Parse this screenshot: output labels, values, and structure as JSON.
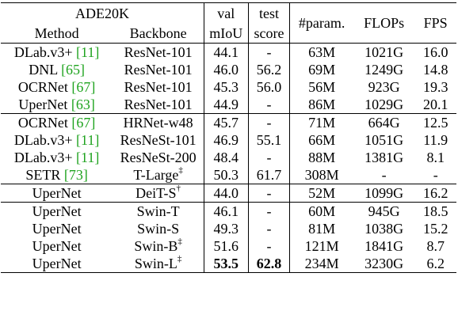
{
  "header": {
    "dataset": "ADE20K",
    "method": "Method",
    "backbone": "Backbone",
    "val_top": "val",
    "val_bottom": "mIoU",
    "test_top": "test",
    "test_bottom": "score",
    "param": "#param.",
    "flops": "FLOPs",
    "fps": "FPS"
  },
  "rows": [
    {
      "method": "DLab.v3+",
      "cite": "[11]",
      "backbone": "ResNet-101",
      "sup": "",
      "val": "44.1",
      "test": "-",
      "param": "63M",
      "flops": "1021G",
      "fps": "16.0"
    },
    {
      "method": "DNL",
      "cite": "[65]",
      "backbone": "ResNet-101",
      "sup": "",
      "val": "46.0",
      "test": "56.2",
      "param": "69M",
      "flops": "1249G",
      "fps": "14.8"
    },
    {
      "method": "OCRNet",
      "cite": "[67]",
      "backbone": "ResNet-101",
      "sup": "",
      "val": "45.3",
      "test": "56.0",
      "param": "56M",
      "flops": "923G",
      "fps": "19.3"
    },
    {
      "method": "UperNet",
      "cite": "[63]",
      "backbone": "ResNet-101",
      "sup": "",
      "val": "44.9",
      "test": "-",
      "param": "86M",
      "flops": "1029G",
      "fps": "20.1"
    },
    {
      "method": "OCRNet",
      "cite": "[67]",
      "backbone": "HRNet-w48",
      "sup": "",
      "val": "45.7",
      "test": "-",
      "param": "71M",
      "flops": "664G",
      "fps": "12.5"
    },
    {
      "method": "DLab.v3+",
      "cite": "[11]",
      "backbone": "ResNeSt-101",
      "sup": "",
      "val": "46.9",
      "test": "55.1",
      "param": "66M",
      "flops": "1051G",
      "fps": "11.9"
    },
    {
      "method": "DLab.v3+",
      "cite": "[11]",
      "backbone": "ResNeSt-200",
      "sup": "",
      "val": "48.4",
      "test": "-",
      "param": "88M",
      "flops": "1381G",
      "fps": "8.1"
    },
    {
      "method": "SETR",
      "cite": "[73]",
      "backbone": "T-Large",
      "sup": "‡",
      "val": "50.3",
      "test": "61.7",
      "param": "308M",
      "flops": "-",
      "fps": "-"
    },
    {
      "method": "UperNet",
      "cite": "",
      "backbone": "DeiT-S",
      "sup": "†",
      "val": "44.0",
      "test": "-",
      "param": "52M",
      "flops": "1099G",
      "fps": "16.2"
    },
    {
      "method": "UperNet",
      "cite": "",
      "backbone": "Swin-T",
      "sup": "",
      "val": "46.1",
      "test": "-",
      "param": "60M",
      "flops": "945G",
      "fps": "18.5"
    },
    {
      "method": "UperNet",
      "cite": "",
      "backbone": "Swin-S",
      "sup": "",
      "val": "49.3",
      "test": "-",
      "param": "81M",
      "flops": "1038G",
      "fps": "15.2"
    },
    {
      "method": "UperNet",
      "cite": "",
      "backbone": "Swin-B",
      "sup": "‡",
      "val": "51.6",
      "test": "-",
      "param": "121M",
      "flops": "1841G",
      "fps": "8.7"
    },
    {
      "method": "UperNet",
      "cite": "",
      "backbone": "Swin-L",
      "sup": "‡",
      "val": "53.5",
      "test": "62.8",
      "param": "234M",
      "flops": "3230G",
      "fps": "6.2"
    }
  ],
  "style": {
    "citation_color": "#1fa31f",
    "separators_before_rows": [
      4,
      8,
      9
    ],
    "bold_cells": [
      {
        "row": 12,
        "cols": [
          "val",
          "test"
        ]
      }
    ]
  }
}
